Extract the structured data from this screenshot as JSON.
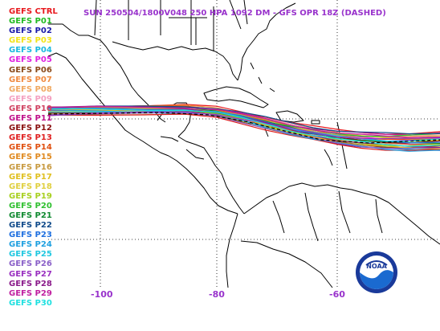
{
  "title": "SUN 250504/1800V048  250 HPA 1092 DM - GFS OPR 18Z (DASHED)",
  "legend": [
    {
      "label": "GEFS CTRL",
      "color": "#e8191e"
    },
    {
      "label": "GEFS P01",
      "color": "#22bb22"
    },
    {
      "label": "GEFS P02",
      "color": "#1a1aaa"
    },
    {
      "label": "GEFS P03",
      "color": "#f2e41a"
    },
    {
      "label": "GEFS P04",
      "color": "#1ab8e0"
    },
    {
      "label": "GEFS P05",
      "color": "#e020e0"
    },
    {
      "label": "GEFS P06",
      "color": "#8b4a1a"
    },
    {
      "label": "GEFS P07",
      "color": "#f08a40"
    },
    {
      "label": "GEFS P08",
      "color": "#f0a860"
    },
    {
      "label": "GEFS P09",
      "color": "#f4a0c0"
    },
    {
      "label": "GEFS P10",
      "color": "#d04060"
    },
    {
      "label": "GEFS P11",
      "color": "#c0108a"
    },
    {
      "label": "GEFS P12",
      "color": "#8a1010"
    },
    {
      "label": "GEFS P13",
      "color": "#e02020"
    },
    {
      "label": "GEFS P14",
      "color": "#e05010"
    },
    {
      "label": "GEFS P15",
      "color": "#e08a20"
    },
    {
      "label": "GEFS P16",
      "color": "#c89a40"
    },
    {
      "label": "GEFS P17",
      "color": "#e0c020"
    },
    {
      "label": "GEFS P18",
      "color": "#e0d040"
    },
    {
      "label": "GEFS P19",
      "color": "#a8d020"
    },
    {
      "label": "GEFS P20",
      "color": "#30c030"
    },
    {
      "label": "GEFS P21",
      "color": "#108a30"
    },
    {
      "label": "GEFS P22",
      "color": "#104a8a"
    },
    {
      "label": "GEFS P23",
      "color": "#2070e0"
    },
    {
      "label": "GEFS P24",
      "color": "#20a0e0"
    },
    {
      "label": "GEFS P25",
      "color": "#20c8e0"
    },
    {
      "label": "GEFS P26",
      "color": "#8a60c8"
    },
    {
      "label": "GEFS P27",
      "color": "#9a30c0"
    },
    {
      "label": "GEFS P28",
      "color": "#8a1a8a"
    },
    {
      "label": "GEFS P29",
      "color": "#c020a0"
    },
    {
      "label": "GEFS P30",
      "color": "#20e0e0"
    }
  ],
  "longitude_labels": [
    "-100",
    "-80",
    "-60"
  ],
  "logo": {
    "text": "NOAA"
  },
  "colors": {
    "title": "#9933cc",
    "axis_label": "#9933cc",
    "coastline": "#000000",
    "grid": "#000000"
  }
}
